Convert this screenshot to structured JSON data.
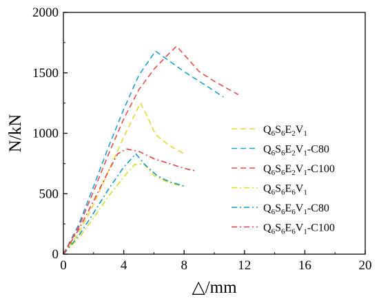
{
  "chart_data": {
    "type": "line",
    "xlabel": "△/mm",
    "ylabel": "N/kN",
    "xlim": [
      0,
      20
    ],
    "ylim": [
      0,
      2000
    ],
    "xticks": [
      "0",
      "4",
      "8",
      "12",
      "16",
      "20"
    ],
    "yticks": [
      "0",
      "500",
      "1000",
      "1500",
      "2000"
    ],
    "grid": false,
    "legend_position": "right",
    "series": [
      {
        "name": "Q6S6E2V1",
        "label_parts": [
          [
            "Q",
            ""
          ],
          [
            "6",
            "sub"
          ],
          [
            "S",
            ""
          ],
          [
            "6",
            "sub"
          ],
          [
            "E",
            ""
          ],
          [
            "2",
            "sub"
          ],
          [
            "V",
            ""
          ],
          [
            "1",
            "sub"
          ]
        ],
        "color": "#e6d832",
        "dash": "dash",
        "points": [
          [
            0,
            0
          ],
          [
            1,
            170
          ],
          [
            2,
            410
          ],
          [
            3,
            690
          ],
          [
            4,
            970
          ],
          [
            5.1,
            1250
          ],
          [
            5.6,
            1130
          ],
          [
            6.1,
            990
          ],
          [
            7,
            900
          ],
          [
            8,
            830
          ]
        ]
      },
      {
        "name": "Q6S6E2V1-C80",
        "label_parts": [
          [
            "Q",
            ""
          ],
          [
            "6",
            "sub"
          ],
          [
            "S",
            ""
          ],
          [
            "6",
            "sub"
          ],
          [
            "E",
            ""
          ],
          [
            "2",
            "sub"
          ],
          [
            "V",
            ""
          ],
          [
            "1",
            "sub"
          ],
          [
            "-C80",
            ""
          ]
        ],
        "color": "#1a9fd6",
        "dash": "dash",
        "points": [
          [
            0,
            0
          ],
          [
            1,
            240
          ],
          [
            2,
            560
          ],
          [
            3,
            890
          ],
          [
            4,
            1200
          ],
          [
            5,
            1480
          ],
          [
            6.1,
            1680
          ],
          [
            7,
            1600
          ],
          [
            8,
            1510
          ],
          [
            9,
            1430
          ],
          [
            10,
            1350
          ],
          [
            10.6,
            1300
          ]
        ]
      },
      {
        "name": "Q6S6E2V1-C100",
        "label_parts": [
          [
            "Q",
            ""
          ],
          [
            "6",
            "sub"
          ],
          [
            "S",
            ""
          ],
          [
            "6",
            "sub"
          ],
          [
            "E",
            ""
          ],
          [
            "2",
            "sub"
          ],
          [
            "V",
            ""
          ],
          [
            "1",
            "sub"
          ],
          [
            "-C100",
            ""
          ]
        ],
        "color": "#e84a4a",
        "dash": "dash",
        "points": [
          [
            0,
            0
          ],
          [
            1,
            220
          ],
          [
            2,
            520
          ],
          [
            3,
            830
          ],
          [
            4,
            1120
          ],
          [
            5,
            1360
          ],
          [
            6,
            1530
          ],
          [
            7,
            1660
          ],
          [
            7.5,
            1720
          ],
          [
            8,
            1650
          ],
          [
            9,
            1510
          ],
          [
            10,
            1430
          ],
          [
            11,
            1360
          ],
          [
            11.6,
            1320
          ]
        ]
      },
      {
        "name": "Q6S6E6V1",
        "label_parts": [
          [
            "Q",
            ""
          ],
          [
            "6",
            "sub"
          ],
          [
            "S",
            ""
          ],
          [
            "6",
            "sub"
          ],
          [
            "E",
            ""
          ],
          [
            "6",
            "sub"
          ],
          [
            "V",
            ""
          ],
          [
            "1",
            "sub"
          ]
        ],
        "color": "#d4df1f",
        "dash": "dashdot",
        "points": [
          [
            0,
            0
          ],
          [
            1,
            130
          ],
          [
            2,
            300
          ],
          [
            3,
            480
          ],
          [
            4,
            640
          ],
          [
            4.7,
            740
          ],
          [
            5.3,
            750
          ],
          [
            6,
            650
          ],
          [
            7,
            590
          ],
          [
            8,
            560
          ]
        ]
      },
      {
        "name": "Q6S6E6V1-C80",
        "label_parts": [
          [
            "Q",
            ""
          ],
          [
            "6",
            "sub"
          ],
          [
            "S",
            ""
          ],
          [
            "6",
            "sub"
          ],
          [
            "E",
            ""
          ],
          [
            "6",
            "sub"
          ],
          [
            "V",
            ""
          ],
          [
            "1",
            "sub"
          ],
          [
            "-C80",
            ""
          ]
        ],
        "color": "#0d98c8",
        "dash": "dashdot",
        "points": [
          [
            0,
            0
          ],
          [
            1,
            150
          ],
          [
            2,
            340
          ],
          [
            3,
            540
          ],
          [
            4,
            720
          ],
          [
            4.8,
            830
          ],
          [
            5.4,
            740
          ],
          [
            6.2,
            650
          ],
          [
            7,
            600
          ],
          [
            8.1,
            560
          ]
        ]
      },
      {
        "name": "Q6S6E6V1-C100",
        "label_parts": [
          [
            "Q",
            ""
          ],
          [
            "6",
            "sub"
          ],
          [
            "S",
            ""
          ],
          [
            "6",
            "sub"
          ],
          [
            "E",
            ""
          ],
          [
            "6",
            "sub"
          ],
          [
            "V",
            ""
          ],
          [
            "1",
            "sub"
          ],
          [
            "-C100",
            ""
          ]
        ],
        "color": "#e33d3d",
        "dash": "dashdot",
        "points": [
          [
            0,
            0
          ],
          [
            1,
            200
          ],
          [
            2,
            440
          ],
          [
            3,
            690
          ],
          [
            3.6,
            830
          ],
          [
            4.2,
            870
          ],
          [
            5,
            850
          ],
          [
            6,
            790
          ],
          [
            7,
            750
          ],
          [
            8,
            710
          ],
          [
            8.7,
            690
          ]
        ]
      }
    ]
  }
}
